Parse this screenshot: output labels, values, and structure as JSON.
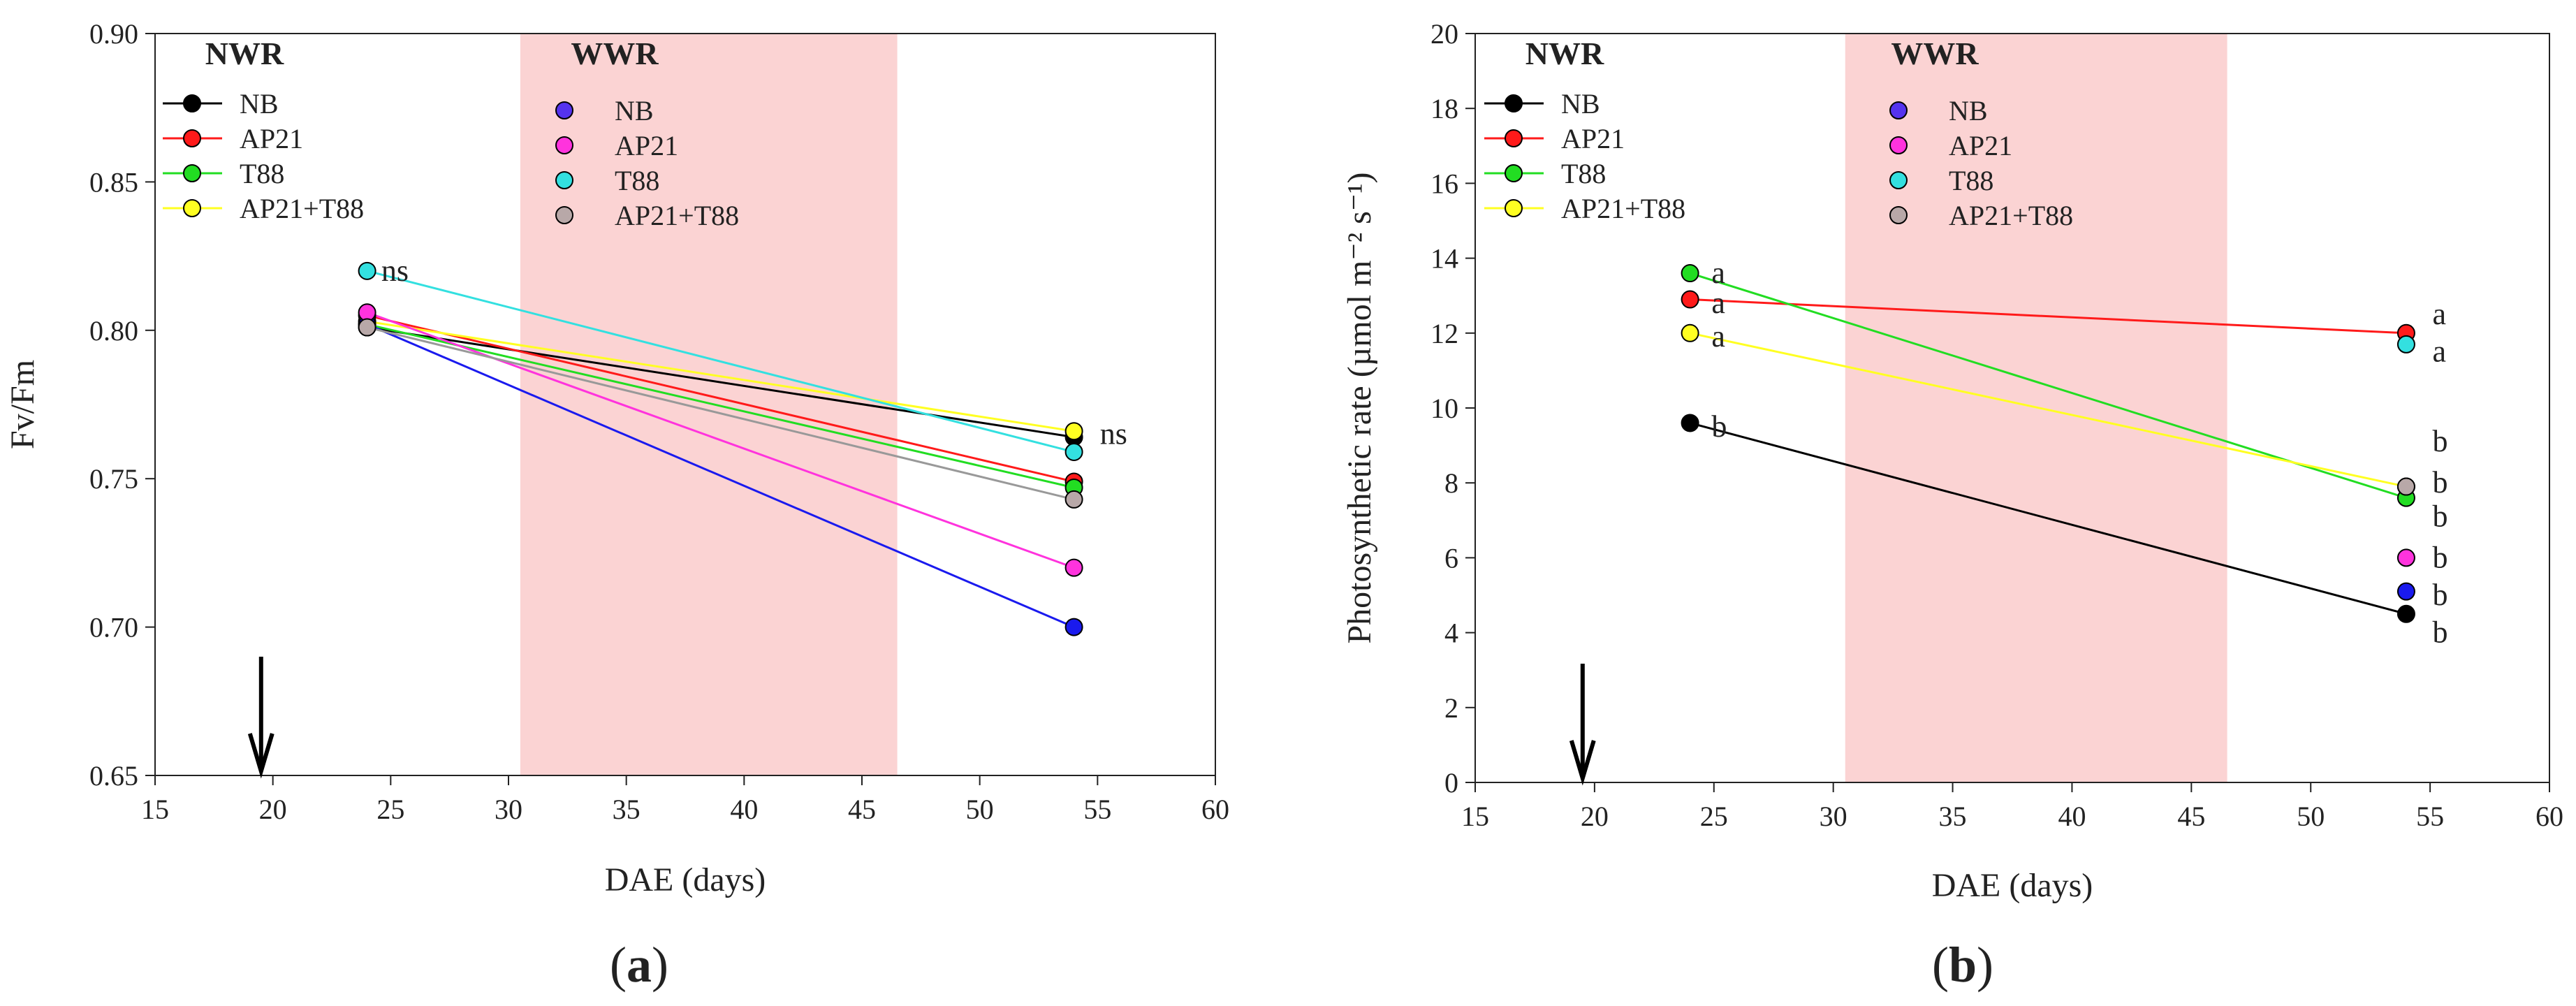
{
  "chart_data": [
    {
      "type": "line",
      "panel_label": "a",
      "xlabel": "DAE (days)",
      "ylabel": "Fv/Fm",
      "xlim": [
        15,
        60
      ],
      "ylim": [
        0.65,
        0.9
      ],
      "xticks": [
        15,
        20,
        25,
        30,
        35,
        40,
        45,
        50,
        55,
        60
      ],
      "yticks": [
        "0.65",
        "0.70",
        "0.75",
        "0.80",
        "0.85",
        "0.90"
      ],
      "shaded_region": {
        "x": [
          30.5,
          46.5
        ],
        "color": "#fbd3d3"
      },
      "arrow_at_x": 19.5,
      "legend_groups": [
        {
          "title": "NWR",
          "entries": [
            {
              "name": "NB",
              "marker": "#000000",
              "line": "#000000"
            },
            {
              "name": "AP21",
              "marker": "#ff1a1a",
              "line": "#ff1a1a"
            },
            {
              "name": "T88",
              "marker": "#22dd22",
              "line": "#22dd22"
            },
            {
              "name": "AP21+T88",
              "marker": "#ffff22",
              "line": "#ffff22"
            }
          ]
        },
        {
          "title": "WWR",
          "entries": [
            {
              "name": "NB",
              "marker": "#5533ee"
            },
            {
              "name": "AP21",
              "marker": "#ff33dd"
            },
            {
              "name": "T88",
              "marker": "#33e0e0"
            },
            {
              "name": "AP21+T88",
              "marker": "#b8a8a8"
            }
          ]
        }
      ],
      "series": [
        {
          "name": "NWR NB",
          "color": "#000000",
          "x": [
            24,
            54
          ],
          "y": [
            0.801,
            0.764
          ]
        },
        {
          "name": "NWR AP21",
          "color": "#ff1a1a",
          "x": [
            24,
            54
          ],
          "y": [
            0.805,
            0.749
          ]
        },
        {
          "name": "NWR T88",
          "color": "#22dd22",
          "x": [
            24,
            54
          ],
          "y": [
            0.802,
            0.747
          ]
        },
        {
          "name": "NWR AP21+T88",
          "color": "#ffff22",
          "x": [
            24,
            54
          ],
          "y": [
            0.803,
            0.766
          ]
        },
        {
          "name": "WWR NB",
          "color": "#1a1aee",
          "x": [
            24,
            54
          ],
          "y": [
            0.802,
            0.7
          ]
        },
        {
          "name": "WWR AP21",
          "color": "#ff33dd",
          "x": [
            24,
            54
          ],
          "y": [
            0.806,
            0.72
          ]
        },
        {
          "name": "WWR T88",
          "color": "#33e0e0",
          "x": [
            24,
            54
          ],
          "y": [
            0.82,
            0.759
          ]
        },
        {
          "name": "WWR AP21+T88",
          "color": "#999999",
          "marker": "#b8a8a8",
          "x": [
            24,
            54
          ],
          "y": [
            0.801,
            0.743
          ]
        }
      ],
      "annotations": [
        {
          "text": "ns",
          "x": 24.6,
          "y": 0.82
        },
        {
          "text": "ns",
          "x": 55.1,
          "y": 0.765
        }
      ]
    },
    {
      "type": "line",
      "panel_label": "b",
      "xlabel": "DAE (days)",
      "ylabel": "Photosynthetic rate (µmol m⁻² s⁻¹)",
      "xlim": [
        15,
        60
      ],
      "ylim": [
        0,
        20
      ],
      "xticks": [
        15,
        20,
        25,
        30,
        35,
        40,
        45,
        50,
        55,
        60
      ],
      "yticks": [
        "0",
        "2",
        "4",
        "6",
        "8",
        "10",
        "12",
        "14",
        "16",
        "18",
        "20"
      ],
      "shaded_region": {
        "x": [
          30.5,
          46.5
        ],
        "color": "#fbd3d3"
      },
      "arrow_at_x": 19.5,
      "legend_groups": [
        {
          "title": "NWR",
          "entries": [
            {
              "name": "NB",
              "marker": "#000000",
              "line": "#000000"
            },
            {
              "name": "AP21",
              "marker": "#ff1a1a",
              "line": "#ff1a1a"
            },
            {
              "name": "T88",
              "marker": "#22dd22",
              "line": "#22dd22"
            },
            {
              "name": "AP21+T88",
              "marker": "#ffff22",
              "line": "#ffff22"
            }
          ]
        },
        {
          "title": "WWR",
          "entries": [
            {
              "name": "NB",
              "marker": "#5533ee"
            },
            {
              "name": "AP21",
              "marker": "#ff33dd"
            },
            {
              "name": "T88",
              "marker": "#33e0e0"
            },
            {
              "name": "AP21+T88",
              "marker": "#b8a8a8"
            }
          ]
        }
      ],
      "series": [
        {
          "name": "NWR NB",
          "color": "#000000",
          "x": [
            24,
            54
          ],
          "y": [
            9.6,
            4.5
          ]
        },
        {
          "name": "NWR AP21",
          "color": "#ff1a1a",
          "x": [
            24,
            54
          ],
          "y": [
            12.9,
            12.0
          ]
        },
        {
          "name": "NWR T88",
          "color": "#22dd22",
          "x": [
            24,
            54
          ],
          "y": [
            13.6,
            7.6
          ]
        },
        {
          "name": "NWR AP21+T88",
          "color": "#ffff22",
          "x": [
            24,
            54
          ],
          "y": [
            12.0,
            7.9
          ]
        },
        {
          "name": "WWR NB",
          "color": "#1a1aee",
          "x": [
            54
          ],
          "y": [
            5.1
          ]
        },
        {
          "name": "WWR AP21",
          "color": "#ff33dd",
          "x": [
            54
          ],
          "y": [
            6.0
          ]
        },
        {
          "name": "WWR T88",
          "color": "#33e0e0",
          "x": [
            54
          ],
          "y": [
            11.7
          ]
        },
        {
          "name": "WWR AP21+T88",
          "color": "#b8a8a8",
          "x": [
            54
          ],
          "y": [
            7.9
          ]
        }
      ],
      "annotations": [
        {
          "text": "a",
          "x": 24.9,
          "y": 13.6
        },
        {
          "text": "a",
          "x": 24.9,
          "y": 12.8
        },
        {
          "text": "a",
          "x": 24.9,
          "y": 11.9
        },
        {
          "text": "b",
          "x": 24.9,
          "y": 9.5
        },
        {
          "text": "a",
          "x": 55.1,
          "y": 12.5
        },
        {
          "text": "a",
          "x": 55.1,
          "y": 11.5
        },
        {
          "text": "b",
          "x": 55.1,
          "y": 9.1
        },
        {
          "text": "b",
          "x": 55.1,
          "y": 8.0
        },
        {
          "text": "b",
          "x": 55.1,
          "y": 7.1
        },
        {
          "text": "b",
          "x": 55.1,
          "y": 6.0
        },
        {
          "text": "b",
          "x": 55.1,
          "y": 5.0
        },
        {
          "text": "b",
          "x": 55.1,
          "y": 4.0
        }
      ]
    }
  ]
}
